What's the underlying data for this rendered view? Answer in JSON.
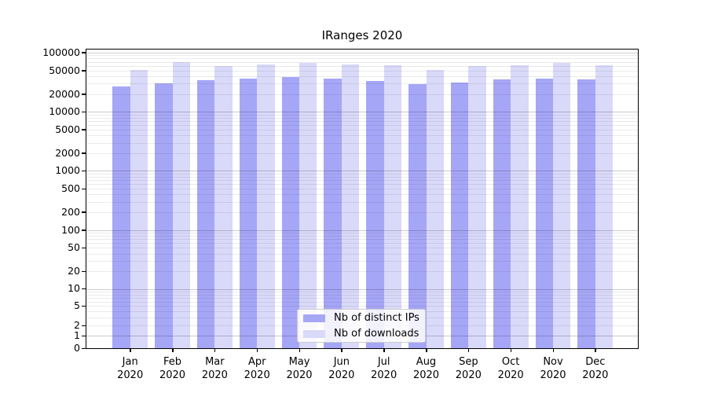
{
  "chart_data": {
    "type": "bar",
    "title": "IRanges 2020",
    "categories": [
      "Jan",
      "Feb",
      "Mar",
      "Apr",
      "May",
      "Jun",
      "Jul",
      "Aug",
      "Sep",
      "Oct",
      "Nov",
      "Dec"
    ],
    "x_year_label": "2020",
    "series": [
      {
        "name": "Nb of distinct IPs",
        "color": "#a6a6f7",
        "values": [
          27000,
          30100,
          34600,
          36000,
          39200,
          36000,
          33200,
          29400,
          31600,
          35300,
          36700,
          35300
        ]
      },
      {
        "name": "Nb of downloads",
        "color": "#d9d9f9",
        "values": [
          51000,
          70000,
          59000,
          62600,
          66700,
          62600,
          60700,
          51000,
          58900,
          61900,
          68000,
          61300
        ]
      }
    ],
    "ylabel": "",
    "xlabel": "",
    "y_ticks": [
      100000,
      50000,
      20000,
      10000,
      5000,
      2000,
      1000,
      500,
      200,
      100,
      50,
      20,
      10,
      5,
      2,
      1,
      0
    ],
    "ylim": [
      0,
      120000
    ],
    "yscale": "asinh",
    "grid": "horizontal, major and minor, drawn over bars",
    "legend_position": "lower center"
  }
}
